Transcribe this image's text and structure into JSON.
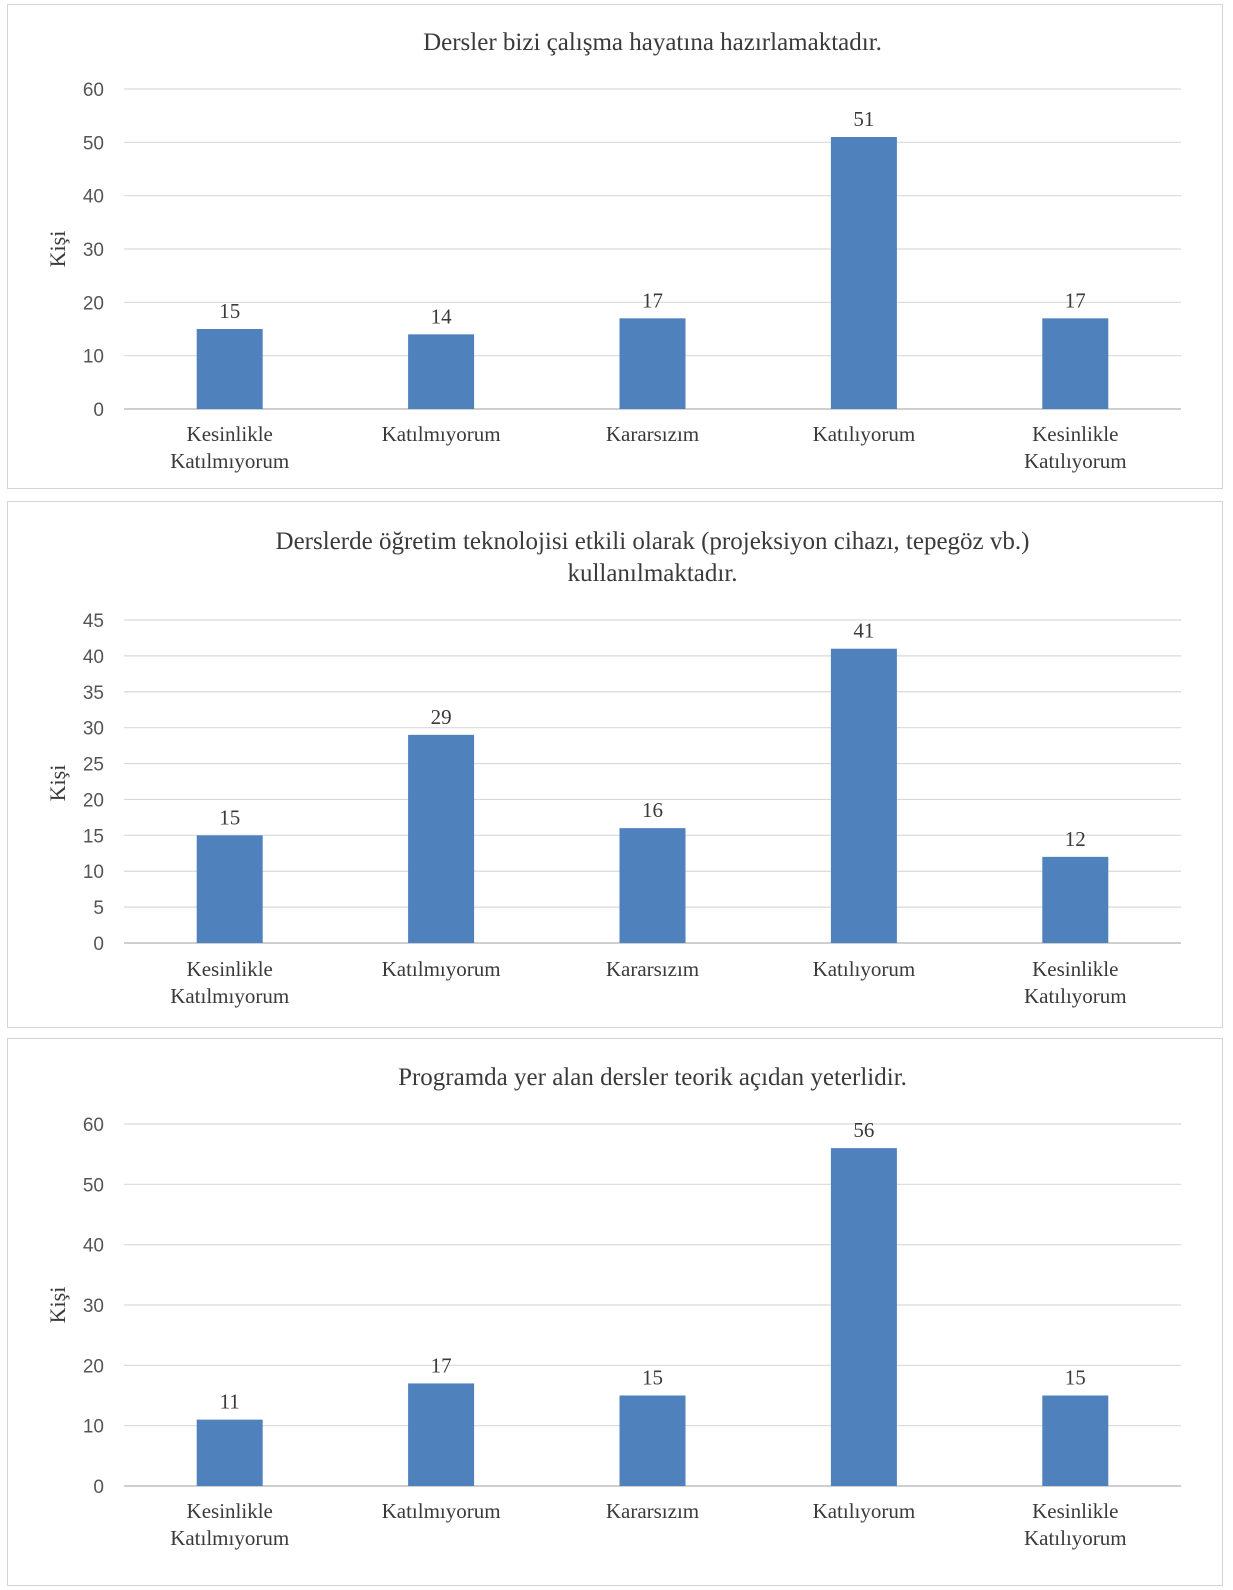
{
  "chart_data": [
    {
      "type": "bar",
      "title_lines": [
        "Dersler bizi çalışma hayatına hazırlamaktadır."
      ],
      "ylabel": "Kişi",
      "xlabel": "",
      "categories": [
        [
          "Kesinlikle",
          "Katılmıyorum"
        ],
        [
          "Katılmıyorum"
        ],
        [
          "Kararsızım"
        ],
        [
          "Katılıyorum"
        ],
        [
          "Kesinlikle",
          "Katılıyorum"
        ]
      ],
      "values": [
        15,
        14,
        17,
        51,
        17
      ],
      "ylim": [
        0,
        60
      ],
      "yticks": [
        0,
        10,
        20,
        30,
        40,
        50,
        60
      ],
      "grid": true,
      "legend": "none",
      "bar_color": "#4f81bd"
    },
    {
      "type": "bar",
      "title_lines": [
        "Derslerde öğretim teknolojisi etkili olarak (projeksiyon cihazı, tepegöz vb.)",
        "kullanılmaktadır."
      ],
      "ylabel": "Kişi",
      "xlabel": "",
      "categories": [
        [
          "Kesinlikle",
          "Katılmıyorum"
        ],
        [
          "Katılmıyorum"
        ],
        [
          "Kararsızım"
        ],
        [
          "Katılıyorum"
        ],
        [
          "Kesinlikle",
          "Katılıyorum"
        ]
      ],
      "values": [
        15,
        29,
        16,
        41,
        12
      ],
      "ylim": [
        0,
        45
      ],
      "yticks": [
        0,
        5,
        10,
        15,
        20,
        25,
        30,
        35,
        40,
        45
      ],
      "grid": true,
      "legend": "none",
      "bar_color": "#4f81bd"
    },
    {
      "type": "bar",
      "title_lines": [
        "Programda yer alan dersler teorik açıdan yeterlidir."
      ],
      "ylabel": "Kişi",
      "xlabel": "",
      "categories": [
        [
          "Kesinlikle",
          "Katılmıyorum"
        ],
        [
          "Katılmıyorum"
        ],
        [
          "Kararsızım"
        ],
        [
          "Katılıyorum"
        ],
        [
          "Kesinlikle",
          "Katılıyorum"
        ]
      ],
      "values": [
        11,
        17,
        15,
        56,
        15
      ],
      "ylim": [
        0,
        60
      ],
      "yticks": [
        0,
        10,
        20,
        30,
        40,
        50,
        60
      ],
      "grid": true,
      "legend": "none",
      "bar_color": "#4f81bd"
    }
  ]
}
